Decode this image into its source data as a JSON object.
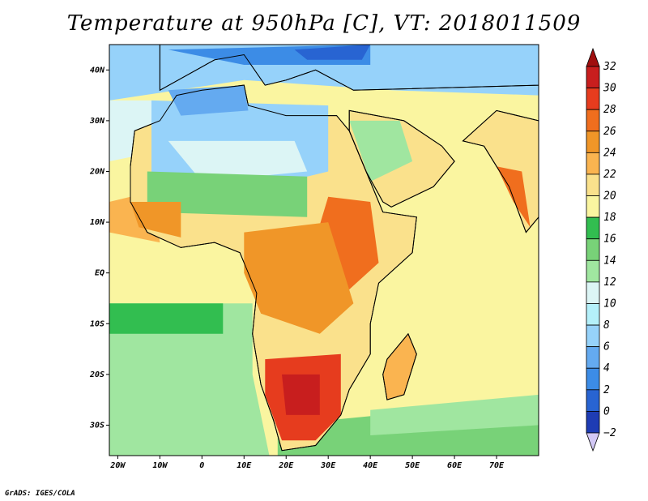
{
  "title": "Temperature at 950hPa [C], VT: 2018011509",
  "credit": "GrADS: IGES/COLA",
  "map": {
    "lon_range": [
      -22,
      80
    ],
    "lat_range": [
      -36,
      45
    ],
    "lon_ticks": [
      {
        "lon": -20,
        "label": "20W"
      },
      {
        "lon": -10,
        "label": "10W"
      },
      {
        "lon": 0,
        "label": "0"
      },
      {
        "lon": 10,
        "label": "10E"
      },
      {
        "lon": 20,
        "label": "20E"
      },
      {
        "lon": 30,
        "label": "30E"
      },
      {
        "lon": 40,
        "label": "40E"
      },
      {
        "lon": 50,
        "label": "50E"
      },
      {
        "lon": 60,
        "label": "60E"
      },
      {
        "lon": 70,
        "label": "70E"
      }
    ],
    "lat_ticks": [
      {
        "lat": 40,
        "label": "40N"
      },
      {
        "lat": 30,
        "label": "30N"
      },
      {
        "lat": 20,
        "label": "20N"
      },
      {
        "lat": 10,
        "label": "10N"
      },
      {
        "lat": 0,
        "label": "EQ"
      },
      {
        "lat": -10,
        "label": "10S"
      },
      {
        "lat": -20,
        "label": "20S"
      },
      {
        "lat": -30,
        "label": "30S"
      }
    ],
    "regions": [
      {
        "name": "africa",
        "points": [
          [
            -17,
            21
          ],
          [
            -16,
            28
          ],
          [
            -10,
            30
          ],
          [
            -6,
            35
          ],
          [
            0,
            36
          ],
          [
            10,
            37
          ],
          [
            11,
            33
          ],
          [
            20,
            31
          ],
          [
            32,
            31
          ],
          [
            35,
            28
          ],
          [
            39,
            20
          ],
          [
            43,
            12
          ],
          [
            51,
            11
          ],
          [
            50,
            4
          ],
          [
            42,
            -2
          ],
          [
            40,
            -10
          ],
          [
            40,
            -16
          ],
          [
            35,
            -23
          ],
          [
            33,
            -28
          ],
          [
            27,
            -34
          ],
          [
            19,
            -35
          ],
          [
            17,
            -29
          ],
          [
            14,
            -22
          ],
          [
            12,
            -12
          ],
          [
            13,
            -4
          ],
          [
            9,
            4
          ],
          [
            3,
            6
          ],
          [
            -5,
            5
          ],
          [
            -13,
            8
          ],
          [
            -17,
            14
          ]
        ]
      },
      {
        "name": "madagascar",
        "points": [
          [
            44,
            -17
          ],
          [
            49,
            -12
          ],
          [
            51,
            -16
          ],
          [
            48,
            -24
          ],
          [
            44,
            -25
          ],
          [
            43,
            -20
          ]
        ]
      },
      {
        "name": "arabia",
        "points": [
          [
            35,
            28
          ],
          [
            35,
            32
          ],
          [
            48,
            30
          ],
          [
            57,
            25
          ],
          [
            60,
            22
          ],
          [
            55,
            17
          ],
          [
            45,
            13
          ],
          [
            43,
            14
          ],
          [
            39,
            20
          ]
        ]
      },
      {
        "name": "india",
        "points": [
          [
            67,
            25
          ],
          [
            70,
            21
          ],
          [
            73,
            17
          ],
          [
            77,
            8
          ],
          [
            80,
            11
          ],
          [
            80,
            30
          ],
          [
            70,
            32
          ],
          [
            62,
            26
          ]
        ]
      },
      {
        "name": "europe",
        "points": [
          [
            -10,
            36
          ],
          [
            -10,
            45
          ],
          [
            80,
            45
          ],
          [
            80,
            37
          ],
          [
            36,
            36
          ],
          [
            27,
            40
          ],
          [
            20,
            38
          ],
          [
            15,
            37
          ],
          [
            10,
            43
          ],
          [
            3,
            42
          ]
        ]
      }
    ]
  },
  "colorbar": {
    "colors": [
      "#1e1e8c",
      "#1e3cb4",
      "#2864d2",
      "#3c8ce6",
      "#64aaf0",
      "#96d2fa",
      "#b4f0fa",
      "#dcf5f5",
      "#a0e6a0",
      "#78d278",
      "#32be50",
      "#faf5a0",
      "#fae18c",
      "#fab450",
      "#f09628",
      "#f06e1e",
      "#e63c1e",
      "#c81e1e",
      "#a00f0f"
    ],
    "labels": [
      "32",
      "30",
      "28",
      "26",
      "24",
      "22",
      "20",
      "18",
      "16",
      "14",
      "12",
      "10",
      "8",
      "6",
      "4",
      "2",
      "0",
      "−2"
    ]
  }
}
